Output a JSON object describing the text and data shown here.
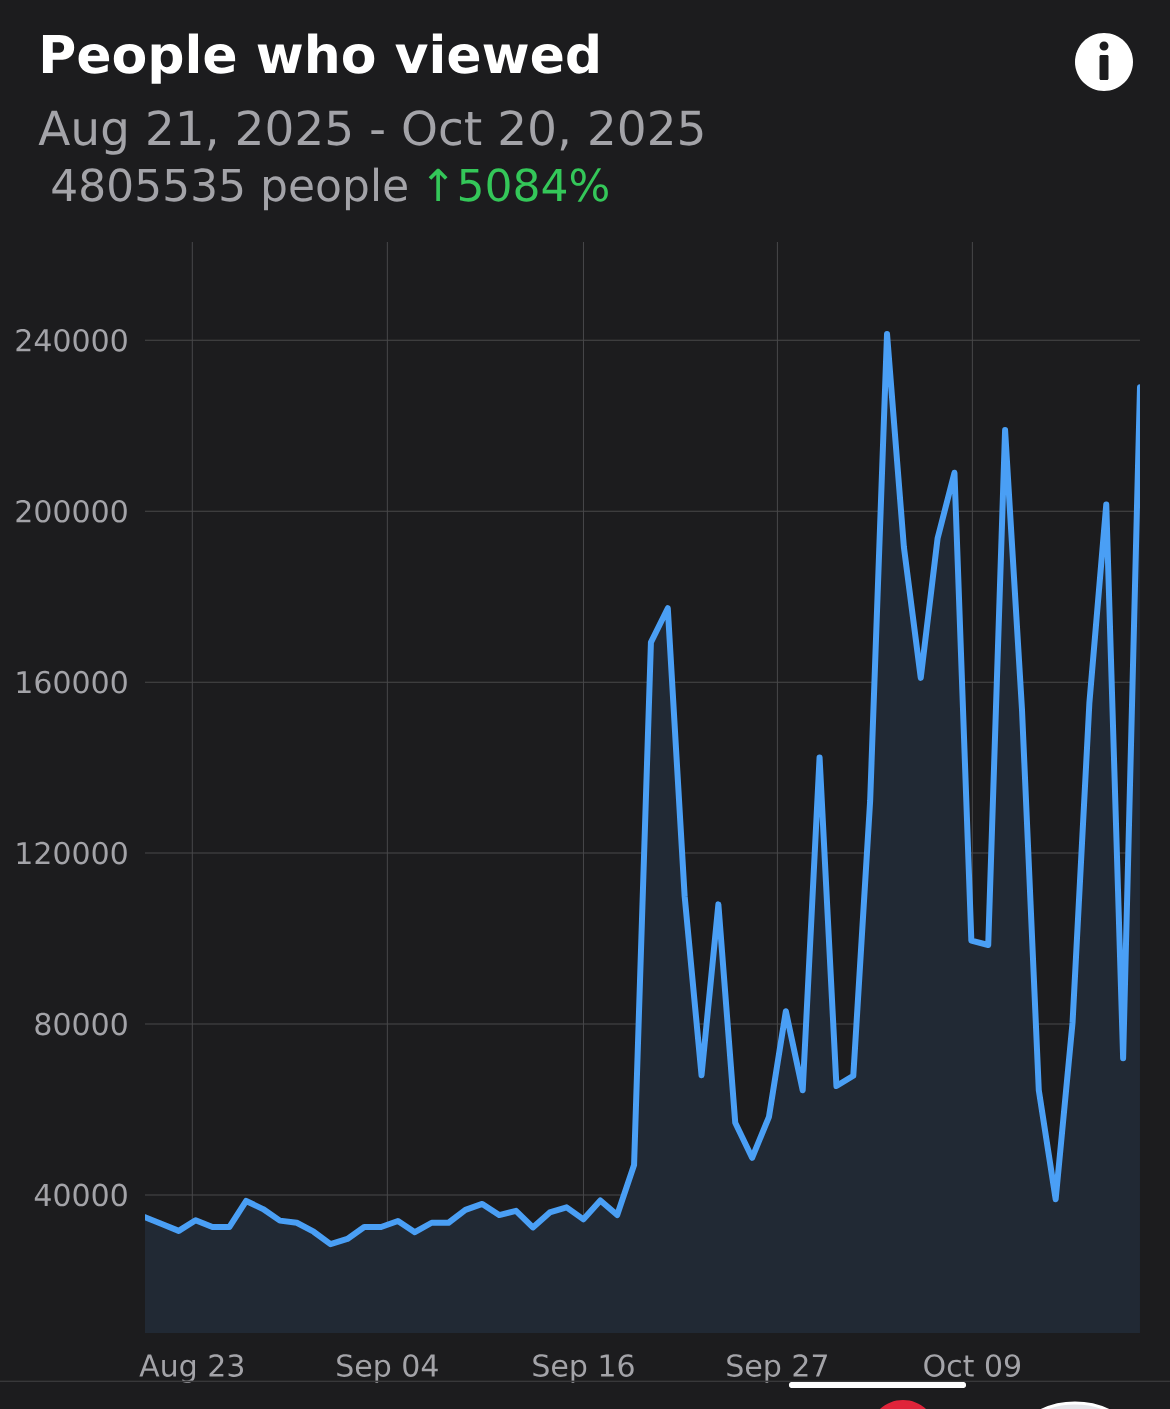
{
  "chart_data": {
    "type": "area",
    "title": "People who viewed",
    "subtitle": "Aug 21, 2025 - Oct 20, 2025",
    "annotations": [
      "4805535 people",
      "↑5084%"
    ],
    "x": [
      "2025-08-21",
      "2025-08-22",
      "2025-08-23",
      "2025-08-24",
      "2025-08-25",
      "2025-08-26",
      "2025-08-27",
      "2025-08-28",
      "2025-08-29",
      "2025-08-30",
      "2025-08-31",
      "2025-09-01",
      "2025-09-02",
      "2025-09-03",
      "2025-09-04",
      "2025-09-05",
      "2025-09-06",
      "2025-09-07",
      "2025-09-08",
      "2025-09-09",
      "2025-09-10",
      "2025-09-11",
      "2025-09-12",
      "2025-09-13",
      "2025-09-14",
      "2025-09-15",
      "2025-09-16",
      "2025-09-17",
      "2025-09-18",
      "2025-09-19",
      "2025-09-20",
      "2025-09-21",
      "2025-09-22",
      "2025-09-23",
      "2025-09-24",
      "2025-09-25",
      "2025-09-26",
      "2025-09-27",
      "2025-09-28",
      "2025-09-29",
      "2025-09-30",
      "2025-10-01",
      "2025-10-02",
      "2025-10-03",
      "2025-10-04",
      "2025-10-05",
      "2025-10-06",
      "2025-10-07",
      "2025-10-08",
      "2025-10-09",
      "2025-10-10",
      "2025-10-11",
      "2025-10-12",
      "2025-10-13",
      "2025-10-14",
      "2025-10-15",
      "2025-10-16",
      "2025-10-17",
      "2025-10-18",
      "2025-10-19"
    ],
    "values": [
      34800,
      33200,
      31600,
      34100,
      32500,
      32500,
      38600,
      36700,
      34000,
      33500,
      31400,
      28500,
      29700,
      32500,
      32500,
      33900,
      31300,
      33500,
      33500,
      36500,
      37900,
      35300,
      36300,
      32400,
      35900,
      37100,
      34300,
      38700,
      35300,
      47000,
      169300,
      177300,
      109900,
      68000,
      108000,
      56900,
      48700,
      58300,
      83000,
      64500,
      142400,
      65500,
      67900,
      132300,
      241500,
      191600,
      161000,
      193700,
      209000,
      99500,
      98500,
      219000,
      153800,
      64500,
      39000,
      80300,
      155200,
      201600,
      72000,
      229000
    ],
    "color": "#4a9ff5",
    "xlim": [
      "2025-08-21",
      "2025-10-19"
    ],
    "xticks": [
      {
        "value": "2025-08-23T19:19",
        "label": "Aug 23"
      },
      {
        "value": "2025-09-04T08:53",
        "label": "Sep 04"
      },
      {
        "value": "2025-09-16",
        "label": "Sep 16"
      },
      {
        "value": "2025-09-27T12:00",
        "label": "Sep 27"
      },
      {
        "value": "2025-10-09T01:26",
        "label": "Oct 09"
      }
    ],
    "ylim": [
      7700,
      263000
    ],
    "yticks": [
      40000,
      80000,
      120000,
      160000,
      200000,
      240000
    ],
    "grid": true
  }
}
